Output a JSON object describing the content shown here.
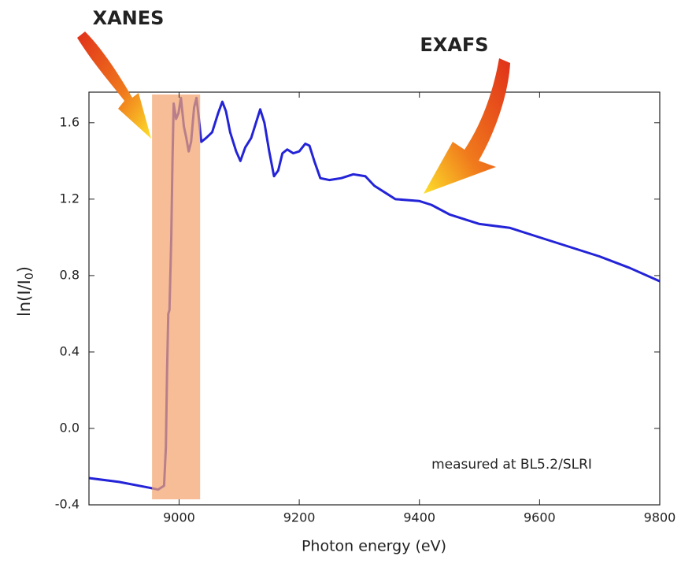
{
  "chart_data": {
    "type": "line",
    "x_label": "Photon energy (eV)",
    "y_label": "ln(I/I0)",
    "annotations": [
      "XANES",
      "EXAFS",
      "measured at BL5.2/SLRI"
    ],
    "highlight": [
      8955,
      9035
    ],
    "highlight_color": "#f2a46e",
    "color": "#2323d8",
    "x": [
      8850,
      8900,
      8950,
      8965,
      8975,
      8978,
      8980,
      8982,
      8984,
      8987,
      8989,
      8991,
      8995,
      8999,
      9003,
      9008,
      9012,
      9016,
      9020,
      9025,
      9029,
      9033,
      9037,
      9045,
      9055,
      9065,
      9072,
      9078,
      9085,
      9095,
      9102,
      9110,
      9120,
      9128,
      9135,
      9142,
      9150,
      9158,
      9165,
      9172,
      9180,
      9190,
      9200,
      9210,
      9217,
      9225,
      9235,
      9250,
      9270,
      9290,
      9310,
      9325,
      9345,
      9360,
      9400,
      9420,
      9450,
      9500,
      9550,
      9600,
      9650,
      9700,
      9750,
      9800
    ],
    "values": [
      -0.26,
      -0.28,
      -0.31,
      -0.32,
      -0.3,
      -0.1,
      0.3,
      0.6,
      0.62,
      1.0,
      1.4,
      1.7,
      1.62,
      1.65,
      1.73,
      1.58,
      1.52,
      1.45,
      1.5,
      1.68,
      1.73,
      1.62,
      1.5,
      1.52,
      1.55,
      1.65,
      1.71,
      1.66,
      1.55,
      1.45,
      1.4,
      1.47,
      1.52,
      1.6,
      1.67,
      1.6,
      1.45,
      1.32,
      1.35,
      1.44,
      1.46,
      1.44,
      1.45,
      1.49,
      1.48,
      1.4,
      1.31,
      1.3,
      1.31,
      1.33,
      1.32,
      1.27,
      1.23,
      1.2,
      1.19,
      1.17,
      1.12,
      1.07,
      1.05,
      1.0,
      0.95,
      0.9,
      0.84,
      0.77
    ],
    "xlim": [
      8850,
      9800
    ],
    "xticks": [
      9000,
      9200,
      9400,
      9600,
      9800
    ],
    "ylim": [
      -0.4,
      1.76
    ],
    "yticks": [
      -0.4,
      {
        "value": 0,
        "label": "0.0"
      },
      0.4,
      0.8,
      1.2,
      1.6
    ]
  }
}
